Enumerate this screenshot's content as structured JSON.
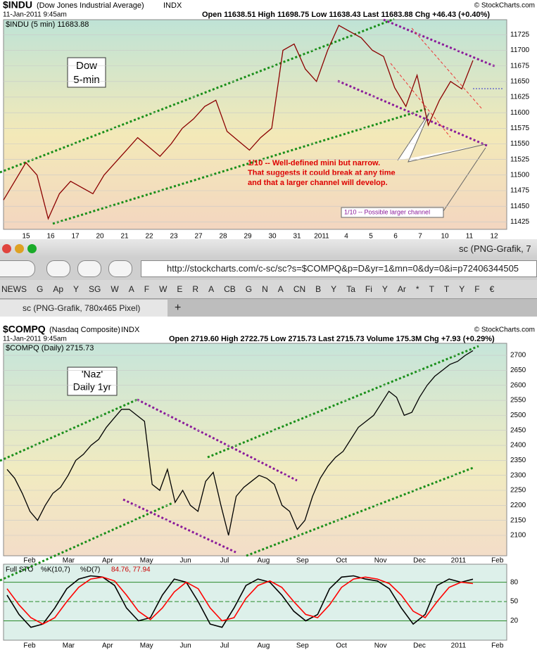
{
  "browser": {
    "title": "sc (PNG-Grafik, 7",
    "url": "http://stockcharts.com/c-sc/sc?s=$COMPQ&p=D&yr=1&mn=0&dy=0&i=p72406344505",
    "bookmarks": [
      "NEWS",
      "G",
      "Ap",
      "Y",
      "SG",
      "W",
      "A",
      "F",
      "W",
      "E",
      "R",
      "A",
      "CB",
      "G",
      "N",
      "A",
      "CN",
      "B",
      "Y",
      "Ta",
      "Fi",
      "Y",
      "Ar",
      "*",
      "T",
      "T",
      "Y",
      "F",
      "€"
    ],
    "tab": "sc (PNG-Grafik, 780x465 Pixel)",
    "new_tab": "+"
  },
  "chart_data": [
    {
      "type": "line",
      "title": "$INDU",
      "subtitle": "(Dow Jones Industrial Average)",
      "exchange": "INDX",
      "date": "11-Jan-2011 9:45am",
      "quote": "Open 11638.51  High 11698.75  Low 11638.43  Last 11683.88  Chg +46.43 (+0.40%)",
      "copyright": "© StockCharts.com",
      "legend": "$INDU (5 min) 11683.88",
      "annotations": [
        "Dow",
        "5-min",
        "1/10 -- Well-defined mini but narrow.",
        "That suggests it could break at any time",
        "and that a larger channel will develop.",
        "1/10 -- Possible larger channel"
      ],
      "x_labels": [
        "15",
        "16",
        "17",
        "20",
        "21",
        "22",
        "23",
        "27",
        "28",
        "29",
        "30",
        "31",
        "2011",
        "4",
        "5",
        "6",
        "7",
        "10",
        "11",
        "12"
      ],
      "series": [
        {
          "name": "$INDU",
          "color": "#8b0000",
          "values": [
            11460,
            11490,
            11520,
            11500,
            11430,
            11470,
            11490,
            11480,
            11470,
            11500,
            11520,
            11540,
            11560,
            11545,
            11530,
            11550,
            11575,
            11590,
            11610,
            11620,
            11570,
            11555,
            11540,
            11560,
            11575,
            11700,
            11710,
            11670,
            11650,
            11700,
            11740,
            11730,
            11720,
            11700,
            11690,
            11640,
            11610,
            11660,
            11580,
            11620,
            11650,
            11638,
            11683.88
          ]
        }
      ],
      "ylim": [
        11413,
        11749
      ],
      "yticks": [
        11425,
        11450,
        11475,
        11500,
        11525,
        11550,
        11575,
        11600,
        11625,
        11650,
        11675,
        11700,
        11725
      ],
      "grid": true
    },
    {
      "type": "line",
      "title": "$COMPQ",
      "subtitle": "(Nasdaq Composite)",
      "exchange": "INDX",
      "date": "11-Jan-2011 9:45am",
      "quote": "Open 2719.60  High 2722.75  Low 2715.73  Last 2715.73  Volume 175.3M  Chg +7.93 (+0.29%)",
      "copyright": "© StockCharts.com",
      "legend": "$COMPQ (Daily) 2715.73",
      "annotations": [
        "'Naz'",
        "Daily 1yr"
      ],
      "x_labels": [
        "Feb",
        "Mar",
        "Apr",
        "May",
        "Jun",
        "Jul",
        "Aug",
        "Sep",
        "Oct",
        "Nov",
        "Dec",
        "2011",
        "Feb"
      ],
      "series": [
        {
          "name": "$COMPQ",
          "color": "#000000",
          "values": [
            2320,
            2290,
            2240,
            2180,
            2150,
            2200,
            2240,
            2260,
            2300,
            2350,
            2370,
            2400,
            2420,
            2460,
            2490,
            2520,
            2520,
            2500,
            2480,
            2270,
            2250,
            2320,
            2210,
            2250,
            2200,
            2180,
            2280,
            2310,
            2200,
            2100,
            2230,
            2260,
            2280,
            2300,
            2290,
            2270,
            2200,
            2180,
            2120,
            2150,
            2230,
            2290,
            2330,
            2360,
            2380,
            2420,
            2460,
            2480,
            2500,
            2540,
            2580,
            2560,
            2500,
            2510,
            2560,
            2600,
            2630,
            2650,
            2670,
            2680,
            2700,
            2715.73
          ]
        }
      ],
      "ylim": [
        2032,
        2740
      ],
      "yticks": [
        2100,
        2150,
        2200,
        2250,
        2300,
        2350,
        2400,
        2450,
        2500,
        2550,
        2600,
        2650,
        2700
      ],
      "grid": true
    },
    {
      "type": "line",
      "title": "Full STO",
      "readout": "84.76, 77.94",
      "x_labels": [
        "Feb",
        "Mar",
        "Apr",
        "May",
        "Jun",
        "Jul",
        "Aug",
        "Sep",
        "Oct",
        "Nov",
        "Dec",
        "2011",
        "Feb"
      ],
      "series": [
        {
          "name": "%K(10,7)",
          "color": "#000000",
          "values": [
            60,
            30,
            10,
            15,
            40,
            70,
            85,
            90,
            88,
            75,
            40,
            20,
            25,
            60,
            85,
            80,
            50,
            15,
            10,
            40,
            75,
            85,
            80,
            60,
            35,
            20,
            30,
            70,
            88,
            90,
            85,
            82,
            70,
            40,
            15,
            30,
            75,
            85,
            80,
            84.76
          ]
        },
        {
          "name": "%D(7)",
          "color": "#ff0000",
          "values": [
            70,
            45,
            25,
            15,
            25,
            50,
            72,
            85,
            88,
            82,
            60,
            35,
            22,
            40,
            65,
            80,
            70,
            40,
            20,
            25,
            55,
            75,
            82,
            72,
            50,
            30,
            25,
            45,
            72,
            85,
            88,
            85,
            78,
            60,
            35,
            25,
            50,
            72,
            80,
            77.94
          ]
        }
      ],
      "ylim": [
        -10,
        108
      ],
      "yticks": [
        20,
        50,
        80
      ],
      "grid": true
    }
  ]
}
